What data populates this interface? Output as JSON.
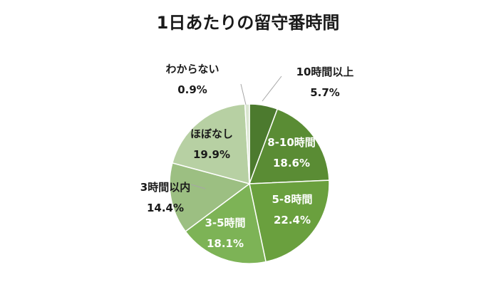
{
  "chart_data": {
    "type": "pie",
    "title": "1日あたりの留守番時間",
    "start_angle_deg": 0,
    "direction": "clockwise",
    "legend": "none",
    "slices": [
      {
        "name": "10時間以上",
        "value": 5.7,
        "value_label": "5.7%",
        "color": "#4c7a2e",
        "label_color": "dark",
        "label_place": "outside"
      },
      {
        "name": "8-10時間",
        "value": 18.6,
        "value_label": "18.6%",
        "color": "#5a8c34",
        "label_color": "light",
        "label_place": "inside"
      },
      {
        "name": "5-8時間",
        "value": 22.4,
        "value_label": "22.4%",
        "color": "#6aa03e",
        "label_color": "light",
        "label_place": "inside"
      },
      {
        "name": "3-5時間",
        "value": 18.1,
        "value_label": "18.1%",
        "color": "#7db356",
        "label_color": "light",
        "label_place": "inside"
      },
      {
        "name": "3時間以内",
        "value": 14.4,
        "value_label": "14.4%",
        "color": "#9cbf82",
        "label_color": "dark",
        "label_place": "outside"
      },
      {
        "name": "ほぼなし",
        "value": 19.9,
        "value_label": "19.9%",
        "color": "#b7d0a3",
        "label_color": "dark",
        "label_place": "inside"
      },
      {
        "name": "わからない",
        "value": 0.9,
        "value_label": "0.9%",
        "color": "#d9e6cf",
        "label_color": "dark",
        "label_place": "outside"
      }
    ]
  }
}
